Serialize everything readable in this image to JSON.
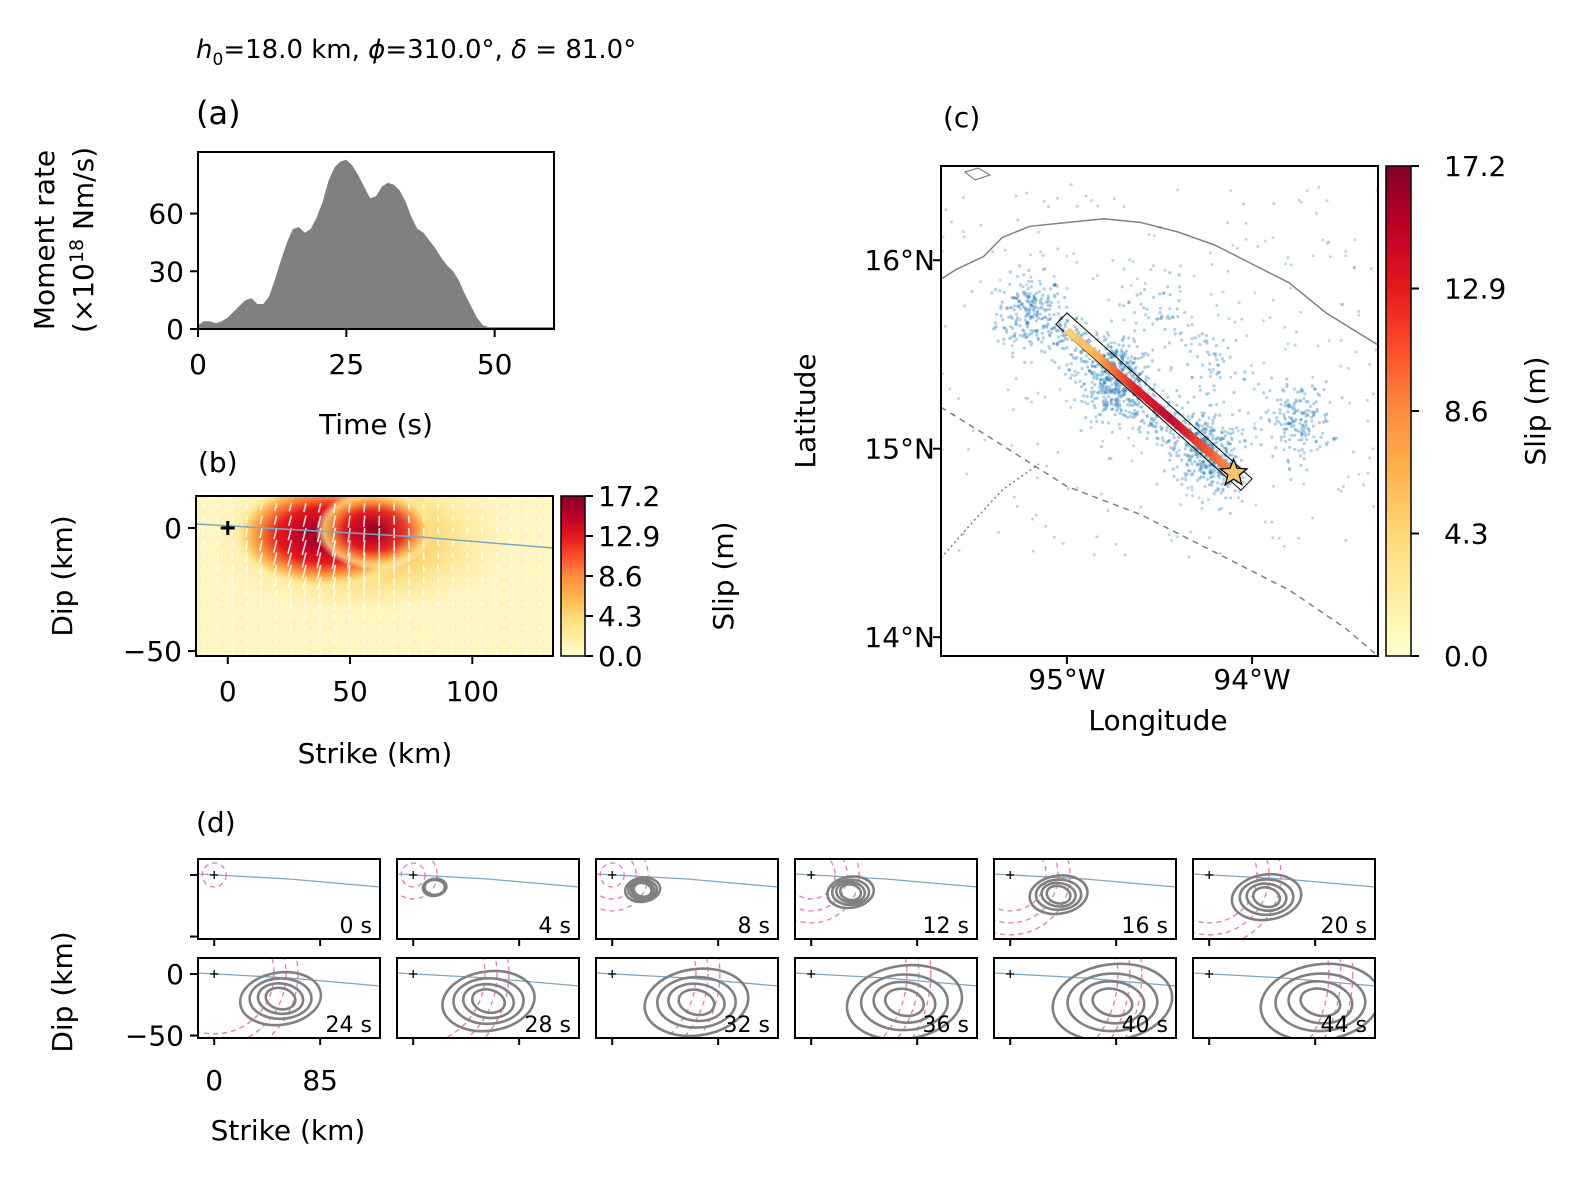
{
  "header": {
    "title_parts": [
      "h",
      "0",
      "=18.0 km, ",
      "ϕ",
      "=310.0°, ",
      "δ",
      " = 81.0°"
    ]
  },
  "panels": {
    "a": {
      "label": "(a)"
    },
    "b": {
      "label": "(b)"
    },
    "c": {
      "label": "(c)"
    },
    "d": {
      "label": "(d)"
    }
  },
  "chart_data": [
    {
      "id": "a",
      "type": "area",
      "title": "",
      "xlabel": "Time (s)",
      "ylabel_line1": "Moment rate",
      "ylabel_line2_parts": [
        "(×10",
        "18",
        " Nm/s)"
      ],
      "xlim": [
        0,
        60
      ],
      "ylim": [
        0,
        92
      ],
      "xticks": [
        "0",
        "25",
        "50"
      ],
      "xtick_values": [
        0,
        25,
        50
      ],
      "yticks": [
        "0",
        "30",
        "60"
      ],
      "ytick_values": [
        0,
        30,
        60
      ],
      "fill_color": "#808080",
      "x": [
        0,
        1,
        2,
        3,
        4,
        5,
        6,
        7,
        8,
        9,
        10,
        11,
        12,
        13,
        14,
        15,
        16,
        17,
        18,
        19,
        20,
        21,
        22,
        23,
        24,
        25,
        26,
        27,
        28,
        29,
        30,
        31,
        32,
        33,
        34,
        35,
        36,
        37,
        38,
        39,
        40,
        41,
        42,
        43,
        44,
        45,
        46,
        47,
        48,
        49,
        50,
        51,
        52,
        60
      ],
      "y": [
        2,
        4,
        4,
        3,
        4,
        6,
        9,
        12,
        15,
        16,
        13,
        13,
        17,
        26,
        36,
        45,
        52,
        53,
        50,
        52,
        58,
        66,
        77,
        84,
        87,
        88,
        85,
        80,
        74,
        68,
        69,
        74,
        76,
        75,
        72,
        66,
        58,
        52,
        50,
        46,
        42,
        37,
        33,
        30,
        25,
        18,
        12,
        6,
        2,
        1,
        1,
        1,
        1,
        1
      ]
    },
    {
      "id": "b",
      "type": "heatmap",
      "title": "",
      "xlabel": "Strike (km)",
      "ylabel": "Dip (km)",
      "xlim": [
        -13,
        133
      ],
      "ylim": [
        -52,
        13
      ],
      "xticks": [
        "0",
        "50",
        "100"
      ],
      "xtick_values": [
        0,
        50,
        100
      ],
      "yticks": [
        "0",
        "−50"
      ],
      "ytick_values": [
        0,
        -50
      ],
      "colorbar_label": "Slip (m)",
      "colorbar_ticks": [
        "17.2",
        "12.9",
        "8.6",
        "4.3",
        "0.0"
      ],
      "colorbar_values": [
        17.2,
        12.9,
        8.6,
        4.3,
        0.0
      ],
      "colormap": [
        "#ffffcc",
        "#ffeda0",
        "#fed976",
        "#feb24c",
        "#fd8d3c",
        "#fc4e2a",
        "#e31a1c",
        "#bd0026",
        "#800026"
      ],
      "slip_peaks": [
        {
          "strike": 35,
          "dip": -10,
          "slip": 17.0
        },
        {
          "strike": 55,
          "dip": -6,
          "slip": 15.5
        }
      ],
      "hypocenter": {
        "strike": 0,
        "dip": 0
      },
      "trench_line_color": "#7fa6c4"
    },
    {
      "id": "c",
      "type": "map",
      "title": "",
      "xlabel": "Longitude",
      "ylabel": "Latitude",
      "xlim": [
        -95.68,
        -93.32
      ],
      "ylim": [
        13.9,
        16.5
      ],
      "xticks": [
        "95°W",
        "94°W"
      ],
      "xtick_values": [
        -95,
        -94
      ],
      "yticks": [
        "16°N",
        "15°N",
        "14°N"
      ],
      "ytick_values": [
        16,
        15,
        14
      ],
      "colorbar_label": "Slip (m)",
      "colorbar_ticks": [
        "17.2",
        "12.9",
        "8.6",
        "4.3",
        "0.0"
      ],
      "colorbar_values": [
        17.2,
        12.9,
        8.6,
        4.3,
        0.0
      ],
      "epicenter": {
        "lon": -94.1,
        "lat": 14.87
      },
      "fault_corners": [
        [
          -95.06,
          15.66
        ],
        [
          -95.0,
          15.72
        ],
        [
          -94.0,
          14.84
        ],
        [
          -94.06,
          14.78
        ]
      ],
      "aftershock_clusters": [
        {
          "lon": -95.2,
          "lat": 15.72,
          "n": 230
        },
        {
          "lon": -94.72,
          "lat": 15.35,
          "n": 330
        },
        {
          "lon": -94.25,
          "lat": 15.0,
          "n": 250
        },
        {
          "lon": -94.52,
          "lat": 15.72,
          "n": 50
        },
        {
          "lon": -93.75,
          "lat": 15.15,
          "n": 180
        },
        {
          "lon": -94.2,
          "lat": 15.45,
          "n": 60
        },
        {
          "lon": -94.6,
          "lat": 15.2,
          "n": 550
        }
      ],
      "coastline": [
        [
          -95.68,
          15.9
        ],
        [
          -95.6,
          15.95
        ],
        [
          -95.45,
          16.02
        ],
        [
          -95.35,
          16.12
        ],
        [
          -95.2,
          16.18
        ],
        [
          -95.0,
          16.2
        ],
        [
          -94.8,
          16.22
        ],
        [
          -94.6,
          16.2
        ],
        [
          -94.4,
          16.15
        ],
        [
          -94.2,
          16.08
        ],
        [
          -94.0,
          15.98
        ],
        [
          -93.8,
          15.88
        ],
        [
          -93.6,
          15.72
        ],
        [
          -93.32,
          15.55
        ]
      ],
      "trench": [
        [
          -95.68,
          15.22
        ],
        [
          -95.4,
          15.05
        ],
        [
          -95.0,
          14.8
        ],
        [
          -94.6,
          14.65
        ],
        [
          -94.2,
          14.45
        ],
        [
          -93.8,
          14.25
        ],
        [
          -93.5,
          14.05
        ],
        [
          -93.32,
          13.9
        ]
      ],
      "boundary_dotted": [
        [
          -95.68,
          14.42
        ],
        [
          -95.5,
          14.62
        ],
        [
          -95.35,
          14.78
        ],
        [
          -95.15,
          14.92
        ]
      ],
      "point_color": "#1f77b4"
    },
    {
      "id": "d",
      "type": "contour",
      "title": "",
      "xlabel": "Strike (km)",
      "ylabel": "Dip (km)",
      "xticks": [
        "0",
        "85"
      ],
      "xtick_values": [
        0,
        85
      ],
      "yticks": [
        "0",
        "−50"
      ],
      "ytick_values": [
        0,
        -50
      ],
      "xlim": [
        -13,
        133
      ],
      "ylim": [
        -52,
        13
      ],
      "snapshot_times": [
        "0 s",
        "4 s",
        "8 s",
        "12 s",
        "16 s",
        "20 s",
        "24 s",
        "28 s",
        "32 s",
        "36 s",
        "40 s",
        "44 s"
      ],
      "snapshot_seconds": [
        0,
        4,
        8,
        12,
        16,
        20,
        24,
        28,
        32,
        36,
        40,
        44
      ],
      "rupture_velocity_km_s": 2.0,
      "contour_color": "#808080",
      "front_color": "#e377c2"
    }
  ]
}
